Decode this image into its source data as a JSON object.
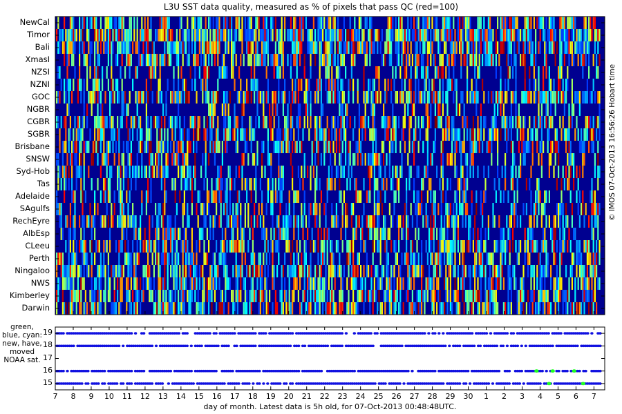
{
  "chart_data": [
    {
      "type": "heatmap",
      "title": "L3U SST data quality, measured as % of pixels that pass QC (red=100)",
      "regions": [
        "NewCal",
        "Timor",
        "Bali",
        "XmasI",
        "NZSI",
        "NZNI",
        "GOC",
        "NGBR",
        "CGBR",
        "SGBR",
        "Brisbane",
        "SNSW",
        "Syd-Hob",
        "Tas",
        "Adelaide",
        "SAgulfs",
        "RechEyre",
        "AlbEsp",
        "CLeeu",
        "Perth",
        "Ningaloo",
        "NWS",
        "Kimberley",
        "Darwin"
      ],
      "color_scale": {
        "min": 0,
        "max": 100,
        "low_color": "#000090",
        "high_color": "#ff0000"
      },
      "x_range": [
        7,
        37.6
      ]
    },
    {
      "type": "scatter",
      "ylabel": [
        "green, blue, cyan:",
        "new, have, moved",
        "NOAA sat."
      ],
      "yticks": [
        15,
        16,
        17,
        18,
        19
      ],
      "ylim": [
        14.5,
        19.5
      ],
      "series_colors": {
        "blue": "#1010e0",
        "green": "#20ff20"
      },
      "green_points": [
        {
          "x": 33.8,
          "y": 16
        },
        {
          "x": 34.5,
          "y": 15
        },
        {
          "x": 34.7,
          "y": 16
        },
        {
          "x": 35.9,
          "y": 16
        },
        {
          "x": 36.4,
          "y": 15
        }
      ]
    }
  ],
  "x_axis": {
    "xlabel": "day of month. Latest data is 5h old, for 07-Oct-2013 00:48:48UTC.",
    "tick_labels": [
      "7",
      "8",
      "9",
      "10",
      "11",
      "12",
      "13",
      "14",
      "15",
      "16",
      "17",
      "18",
      "19",
      "20",
      "21",
      "22",
      "23",
      "24",
      "25",
      "26",
      "27",
      "28",
      "29",
      "30",
      "1",
      "2",
      "3",
      "4",
      "5",
      "6",
      "7"
    ]
  },
  "side_note": "© IMOS 07-Oct-2013 16:56:26 Hobart time"
}
